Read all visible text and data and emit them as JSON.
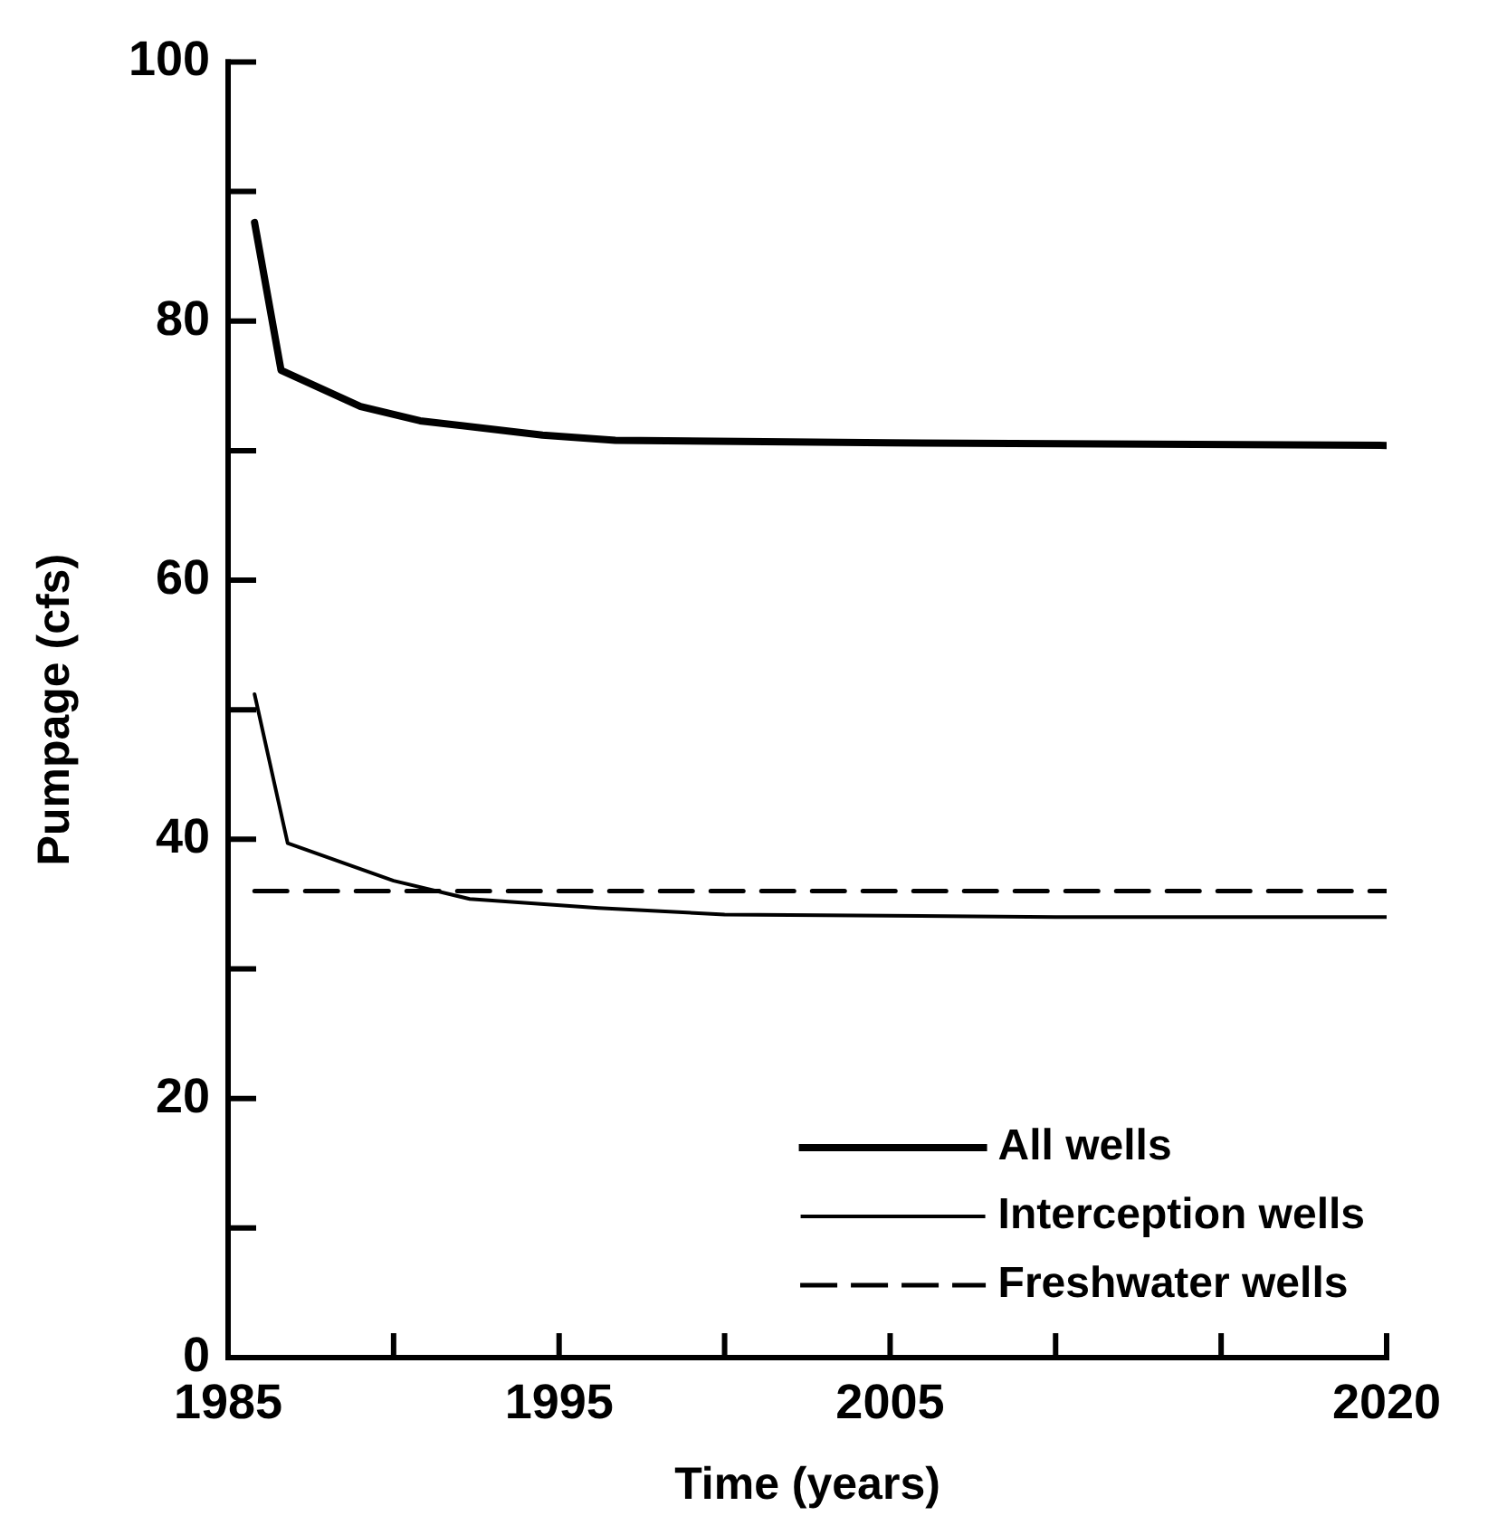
{
  "chart_data": {
    "type": "line",
    "xlabel": "Time (years)",
    "ylabel": "Pumpage (cfs)",
    "xlim": [
      1985,
      2020
    ],
    "xticks": [
      1985,
      {
        "value": 1990,
        "label": null
      },
      1995,
      {
        "value": 2000,
        "label": null
      },
      2005,
      {
        "value": 2010,
        "label": null
      },
      {
        "value": 2015,
        "label": null
      },
      2020
    ],
    "ylim": [
      0,
      100
    ],
    "yticks": [
      0,
      {
        "value": 10,
        "label": null
      },
      20,
      {
        "value": 30,
        "label": null
      },
      40,
      {
        "value": 50,
        "label": null
      },
      60,
      {
        "value": 70,
        "label": null
      },
      80,
      {
        "value": 90,
        "label": null
      },
      100
    ],
    "grid": false,
    "legend": "bottom right",
    "marker": "none",
    "series": [
      {
        "name": "All wells",
        "color": "#000000",
        "line_style": "solid",
        "x": [
          1985.8,
          1986.6,
          1989,
          1990.8,
          1994.5,
          1996.7,
          2005,
          2020
        ],
        "values": [
          87.6,
          76.2,
          73.4,
          72.3,
          71.2,
          70.8,
          70.6,
          70.4
        ]
      },
      {
        "name": "Interception wells",
        "color": "#000000",
        "line_style": "solid",
        "x": [
          1985.8,
          1986.8,
          1990,
          1992.3,
          1996.2,
          2000,
          2010,
          2020
        ],
        "values": [
          51.2,
          39.7,
          36.8,
          35.4,
          34.7,
          34.2,
          34.0,
          34.0
        ]
      },
      {
        "name": "Freshwater wells",
        "color": "#000000",
        "line_style": "dashed",
        "x": [
          1985.8,
          2020
        ],
        "values": [
          36,
          36
        ]
      }
    ]
  }
}
